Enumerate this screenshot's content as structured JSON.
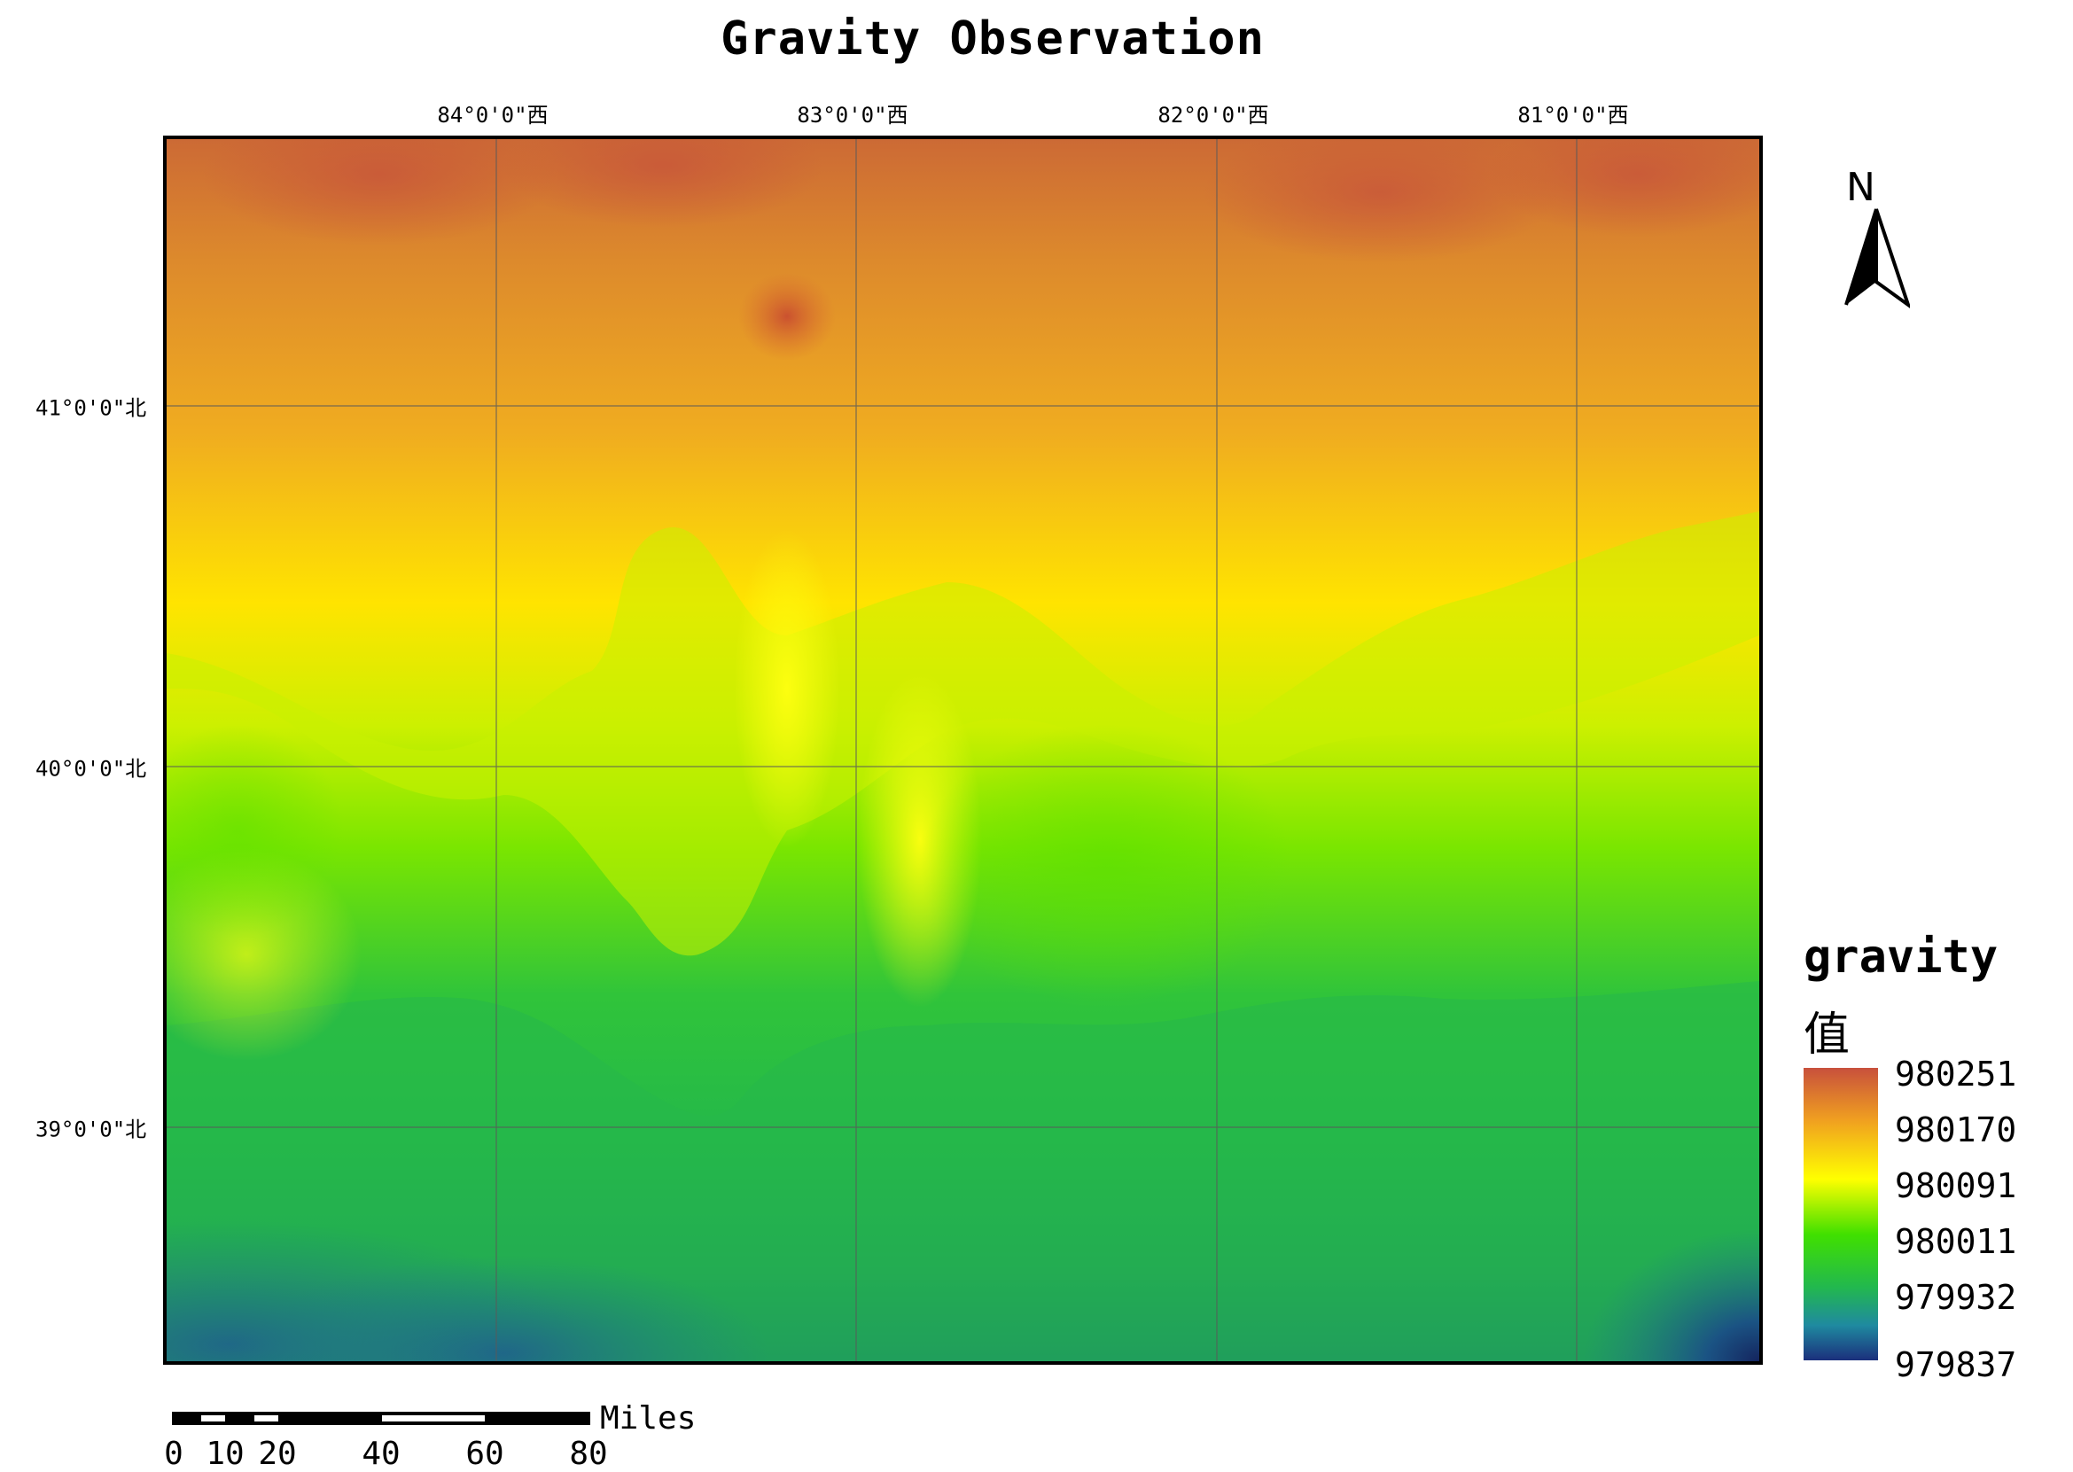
{
  "title": "Gravity Observation",
  "longitude_ticks": [
    "84°0'0\"西",
    "83°0'0\"西",
    "82°0'0\"西",
    "81°0'0\"西"
  ],
  "latitude_ticks": [
    "41°0'0\"北",
    "40°0'0\"北",
    "39°0'0\"北"
  ],
  "north_arrow": {
    "letter": "N",
    "icon": "north-arrow-icon"
  },
  "legend": {
    "title": "gravity",
    "subtitle": "值",
    "labels": [
      "980251",
      "980170",
      "980091",
      "980011",
      "979932",
      "979837"
    ],
    "colors": [
      "#c8503c",
      "#f0a020",
      "#ffff00",
      "#40e000",
      "#22b84e",
      "#1f8aa0",
      "#1b2f7c"
    ]
  },
  "scale_bar": {
    "unit": "Miles",
    "labels": [
      "0",
      "10",
      "20",
      "40",
      "60",
      "80"
    ]
  }
}
